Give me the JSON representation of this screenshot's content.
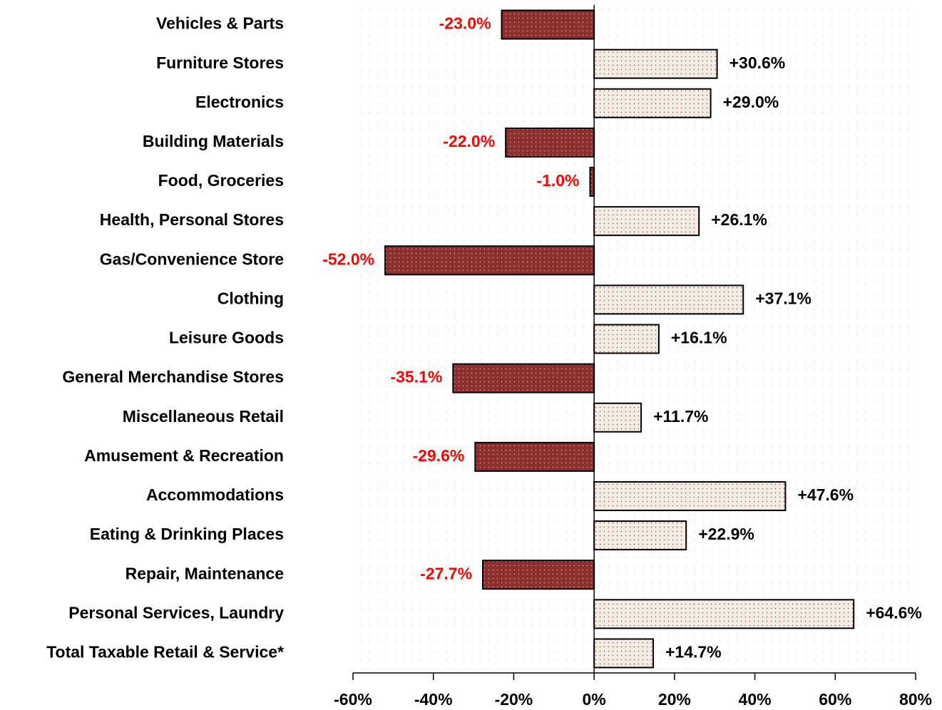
{
  "chart_data": {
    "type": "bar",
    "orientation": "horizontal",
    "categories": [
      "Vehicles & Parts",
      "Furniture Stores",
      "Electronics",
      "Building Materials",
      "Food, Groceries",
      "Health, Personal Stores",
      "Gas/Convenience Store",
      "Clothing",
      "Leisure Goods",
      "General Merchandise Stores",
      "Miscellaneous Retail",
      "Amusement & Recreation",
      "Accommodations",
      "Eating & Drinking Places",
      "Repair, Maintenance",
      "Personal Services, Laundry",
      "Total Taxable Retail & Service*"
    ],
    "values": [
      -23.0,
      30.6,
      29.0,
      -22.0,
      -1.0,
      26.1,
      -52.0,
      37.1,
      16.1,
      -35.1,
      11.7,
      -29.6,
      47.6,
      22.9,
      -27.7,
      64.6,
      14.7
    ],
    "value_labels": [
      "-23.0%",
      "+30.6%",
      "+29.0%",
      "-22.0%",
      "-1.0%",
      "+26.1%",
      "-52.0%",
      "+37.1%",
      "+16.1%",
      "-35.1%",
      "+11.7%",
      "-29.6%",
      "+47.6%",
      "+22.9%",
      "-27.7%",
      "+64.6%",
      "+14.7%"
    ],
    "positive_color": "#f3ece2",
    "negative_color": "#8c2f2f",
    "positive_label_color": "#000000",
    "negative_label_color": "#ff0000",
    "xlim": [
      -60,
      80
    ],
    "xticks": [
      {
        "value": -60,
        "label": "-60%"
      },
      {
        "value": -40,
        "label": "-40%"
      },
      {
        "value": -20,
        "label": "-20%"
      },
      {
        "value": 0,
        "label": "0%"
      },
      {
        "value": 20,
        "label": "20%"
      },
      {
        "value": 40,
        "label": "40%"
      },
      {
        "value": 60,
        "label": "60%"
      },
      {
        "value": 80,
        "label": "80%"
      }
    ]
  }
}
